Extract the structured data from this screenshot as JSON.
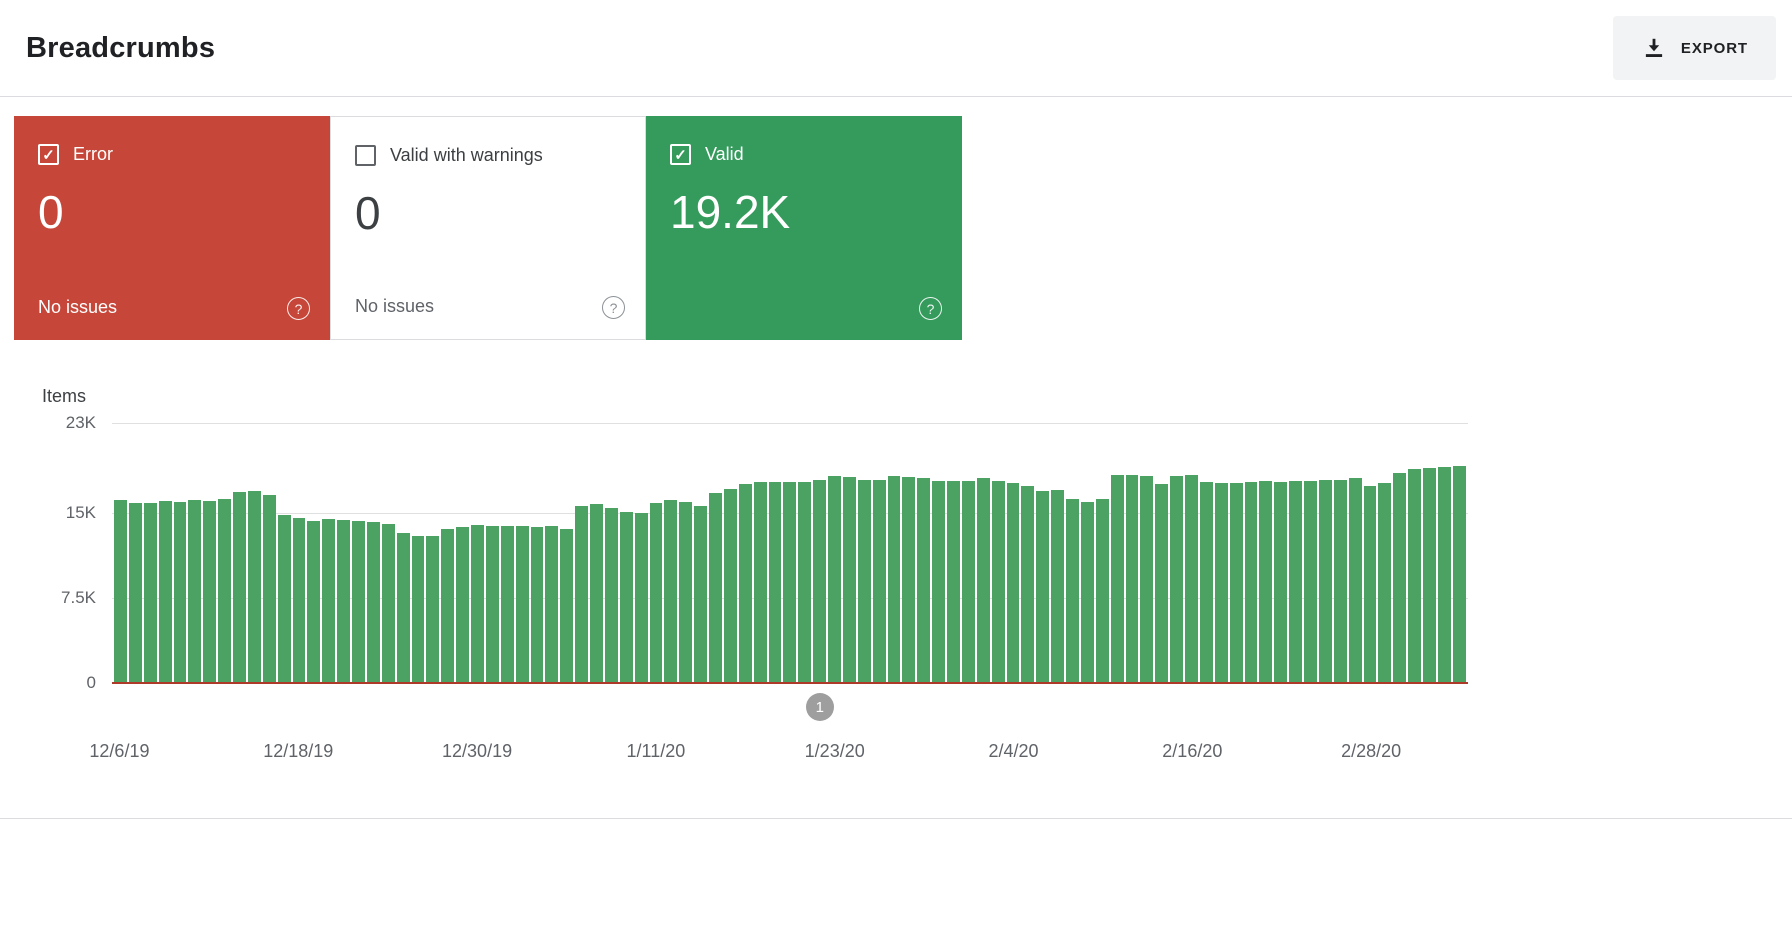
{
  "header": {
    "title": "Breadcrumbs",
    "export_label": "EXPORT"
  },
  "cards": {
    "error": {
      "label": "Error",
      "value": "0",
      "status": "No issues",
      "checked": true,
      "help_glyph": "?"
    },
    "warnings": {
      "label": "Valid with warnings",
      "value": "0",
      "status": "No issues",
      "checked": false,
      "help_glyph": "?"
    },
    "valid": {
      "label": "Valid",
      "value": "19.2K",
      "checked": true,
      "help_glyph": "?"
    }
  },
  "chart_data": {
    "type": "bar",
    "title": "",
    "ylabel": "Items",
    "xlabel": "",
    "ylim": [
      0,
      23000
    ],
    "grid": true,
    "series_name": "Valid",
    "y_ticks": [
      {
        "label": "23K",
        "value": 23000
      },
      {
        "label": "15K",
        "value": 15000
      },
      {
        "label": "7.5K",
        "value": 7500
      },
      {
        "label": "0",
        "value": 0
      }
    ],
    "x_ticks": [
      {
        "label": "12/6/19",
        "index": 0
      },
      {
        "label": "12/18/19",
        "index": 12
      },
      {
        "label": "12/30/19",
        "index": 24
      },
      {
        "label": "1/11/20",
        "index": 36
      },
      {
        "label": "1/23/20",
        "index": 48
      },
      {
        "label": "2/4/20",
        "index": 60
      },
      {
        "label": "2/16/20",
        "index": 72
      },
      {
        "label": "2/28/20",
        "index": 84
      }
    ],
    "values": [
      16200,
      15900,
      15900,
      16100,
      16000,
      16200,
      16100,
      16300,
      16900,
      17000,
      16600,
      14900,
      14600,
      14300,
      14500,
      14400,
      14300,
      14200,
      14100,
      13300,
      13000,
      13000,
      13600,
      13800,
      14000,
      13900,
      13900,
      13900,
      13800,
      13900,
      13600,
      15700,
      15800,
      15500,
      15100,
      15000,
      15900,
      16200,
      16000,
      15700,
      16800,
      17200,
      17600,
      17800,
      17800,
      17800,
      17800,
      18000,
      18300,
      18200,
      18000,
      18000,
      18300,
      18200,
      18100,
      17900,
      17900,
      17900,
      18100,
      17900,
      17700,
      17400,
      17000,
      17100,
      16300,
      16000,
      16300,
      18400,
      18400,
      18300,
      17600,
      18300,
      18400,
      17800,
      17700,
      17700,
      17800,
      17900,
      17800,
      17900,
      17900,
      18000,
      18000,
      18100,
      17400,
      17700,
      18600,
      18900,
      19000,
      19100,
      19200
    ],
    "error_series": {
      "name": "Error",
      "constant_value": 0
    },
    "marker": {
      "label": "1",
      "index": 47
    }
  },
  "colors": {
    "error_red": "#c6473a",
    "valid_green": "#359b5c",
    "bar_green": "#4ca263",
    "error_line": "#ad3a28",
    "gridline": "#e0e0e0",
    "marker_gray": "#9e9e9e",
    "export_bg": "#f1f3f4"
  }
}
